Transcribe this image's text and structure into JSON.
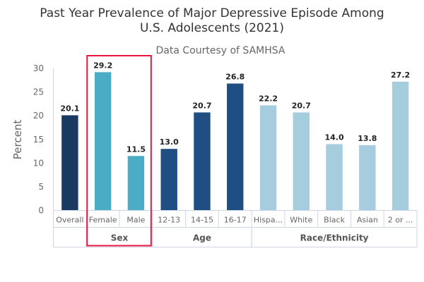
{
  "chart_data": {
    "type": "bar",
    "title": "Past Year Prevalence of Major Depressive Episode Among U.S. Adolescents (2021)",
    "title_lines": [
      "Past Year Prevalence of Major Depressive Episode Among",
      "U.S. Adolescents (2021)"
    ],
    "subtitle": "Data Courtesy of SAMHSA",
    "xlabel": "",
    "ylabel": "Percent",
    "ylim": [
      0,
      30
    ],
    "yticks": [
      0,
      5,
      10,
      15,
      20,
      25,
      30
    ],
    "grid": false,
    "categories": [
      "Overall",
      "Female",
      "Male",
      "12-13",
      "14-15",
      "16-17",
      "Hispa...",
      "White",
      "Black",
      "Asian",
      "2 or ..."
    ],
    "values": [
      20.1,
      29.2,
      11.5,
      13.0,
      20.7,
      26.8,
      22.2,
      20.7,
      14.0,
      13.8,
      27.2
    ],
    "value_labels": [
      "20.1",
      "29.2",
      "11.5",
      "13.0",
      "20.7",
      "26.8",
      "22.2",
      "20.7",
      "14.0",
      "13.8",
      "27.2"
    ],
    "groups": [
      {
        "name": "",
        "start": 0,
        "count": 1,
        "color": "#1b3a5f"
      },
      {
        "name": "Sex",
        "start": 1,
        "count": 2,
        "color": "#4bacc6"
      },
      {
        "name": "Age",
        "start": 3,
        "count": 3,
        "color": "#1f4e82"
      },
      {
        "name": "Race/Ethnicity",
        "start": 6,
        "count": 5,
        "color": "#a6cddd"
      }
    ],
    "highlight": {
      "group": "Sex",
      "color": "#e8163c"
    }
  }
}
